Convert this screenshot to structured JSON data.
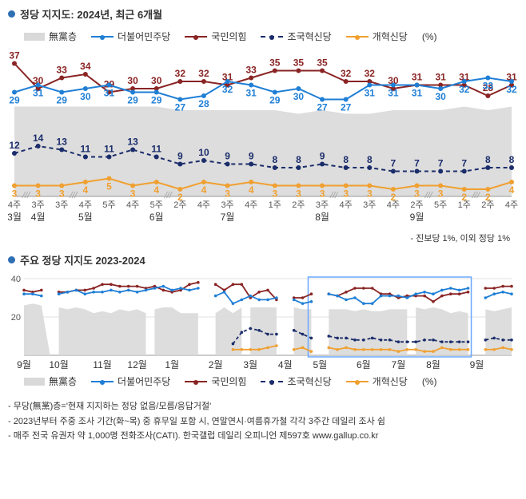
{
  "colors": {
    "bullet": "#2f6fb3",
    "area": "#d9d9d9",
    "blue": "#1f7fd6",
    "darkred": "#8a2424",
    "navy": "#1b2d6b",
    "orange": "#f0a030",
    "grid": "#e0e0e0",
    "text": "#333333",
    "hatch": "#b0b0b0",
    "highlight_box": "#6aa8ff"
  },
  "chart1": {
    "title": "정당 지지도: 2024년, 최근 6개월",
    "legend": {
      "none": "無黨층",
      "blue": "더불어민주당",
      "darkred": "국민의힘",
      "navy": "조국혁신당",
      "orange": "개혁신당",
      "pct": "(%)"
    },
    "y_min": 0,
    "y_max": 40,
    "x_labels_week": [
      "4주",
      "3주",
      "3주",
      "4주",
      "5주",
      "4주",
      "5주",
      "2주",
      "4주",
      "3주",
      "4주",
      "1주",
      "2주",
      "3주",
      "4주",
      "3주",
      "4주",
      "2주",
      "5주",
      "1주",
      "2주",
      "4주"
    ],
    "x_labels_month": [
      "3월",
      "4월",
      "",
      "5월",
      "",
      "",
      "6월",
      "",
      "",
      "7월",
      "",
      "",
      "",
      "8월",
      "",
      "",
      "",
      "9월",
      "",
      "",
      "",
      ""
    ],
    "series": {
      "none_area": [
        25,
        25,
        25,
        25,
        25,
        25,
        25,
        24,
        24,
        24,
        24,
        24,
        23,
        24,
        23,
        23,
        24,
        24,
        24,
        25,
        24,
        25
      ],
      "blue": [
        29,
        31,
        29,
        30,
        31,
        29,
        29,
        27,
        28,
        32,
        31,
        29,
        30,
        27,
        27,
        31,
        31,
        31,
        30,
        32,
        33,
        32
      ],
      "darkred": [
        37,
        30,
        33,
        34,
        29,
        30,
        30,
        32,
        32,
        31,
        33,
        35,
        35,
        35,
        32,
        32,
        30,
        31,
        31,
        31,
        28,
        31
      ],
      "navy": [
        12,
        14,
        13,
        11,
        11,
        13,
        11,
        9,
        10,
        9,
        9,
        8,
        8,
        9,
        8,
        8,
        7,
        7,
        7,
        7,
        8,
        8
      ],
      "orange": [
        3,
        3,
        3,
        4,
        5,
        3,
        4,
        2,
        4,
        3,
        4,
        3,
        3,
        3,
        3,
        3,
        2,
        3,
        3,
        2,
        2,
        4
      ]
    },
    "hatch_breaks": [
      1,
      3,
      7,
      14,
      18,
      20
    ],
    "footnote_right": "- 진보당 1%, 이외 정당 1%"
  },
  "chart2": {
    "title": "주요 정당 지지도 2023-2024",
    "y_min": 0,
    "y_max": 40,
    "y_ticks": [
      20,
      40
    ],
    "month_labels": [
      "9월",
      "10월",
      "11월",
      "12월",
      "1월",
      "2월",
      "3월",
      "4월",
      "5월",
      "6월",
      "7월",
      "8월",
      "9월",
      ""
    ],
    "segments": [
      {
        "start": 0,
        "end": 3
      },
      {
        "start": 4,
        "end": 14
      },
      {
        "start": 15,
        "end": 20
      },
      {
        "start": 22,
        "end": 25
      },
      {
        "start": 26,
        "end": 29
      },
      {
        "start": 31,
        "end": 33
      },
      {
        "start": 35,
        "end": 44
      },
      {
        "start": 45,
        "end": 51
      },
      {
        "start": 53,
        "end": 56
      }
    ],
    "series": {
      "blue": [
        32,
        32,
        31,
        null,
        32,
        33,
        34,
        32,
        33,
        33,
        34,
        33,
        34,
        33,
        34,
        35,
        36,
        34,
        35,
        34,
        35,
        null,
        31,
        33,
        27,
        29,
        31,
        29,
        29,
        30,
        null,
        29,
        27,
        28,
        null,
        32,
        31,
        29,
        30,
        27,
        27,
        31,
        31,
        31,
        30,
        32,
        33,
        32,
        34,
        35,
        34,
        35,
        null,
        30,
        32,
        33,
        32
      ],
      "darkred": [
        34,
        33,
        34,
        null,
        33,
        33,
        34,
        34,
        35,
        37,
        37,
        36,
        36,
        36,
        35,
        36,
        34,
        33,
        34,
        37,
        38,
        null,
        37,
        34,
        37,
        37,
        30,
        33,
        34,
        29,
        null,
        30,
        30,
        32,
        null,
        32,
        31,
        33,
        35,
        35,
        35,
        32,
        32,
        30,
        31,
        31,
        31,
        28,
        31,
        32,
        32,
        33,
        null,
        35,
        35,
        36,
        36
      ],
      "navy": [
        null,
        null,
        null,
        null,
        null,
        null,
        null,
        null,
        null,
        null,
        null,
        null,
        null,
        null,
        null,
        null,
        null,
        null,
        null,
        null,
        null,
        null,
        null,
        null,
        6,
        12,
        14,
        13,
        11,
        11,
        null,
        13,
        11,
        9,
        null,
        10,
        9,
        9,
        8,
        8,
        9,
        8,
        8,
        7,
        7,
        7,
        8,
        8,
        7,
        7,
        7,
        7,
        null,
        8,
        9,
        8,
        8
      ],
      "orange": [
        null,
        null,
        null,
        null,
        null,
        null,
        null,
        null,
        null,
        null,
        null,
        null,
        null,
        null,
        null,
        null,
        null,
        null,
        null,
        null,
        null,
        null,
        null,
        null,
        3,
        3,
        3,
        3,
        4,
        5,
        null,
        3,
        4,
        2,
        null,
        4,
        3,
        4,
        3,
        3,
        3,
        3,
        3,
        2,
        3,
        3,
        2,
        2,
        4,
        3,
        3,
        3,
        null,
        3,
        3,
        4,
        3
      ],
      "none": [
        26,
        27,
        26,
        null,
        25,
        24,
        25,
        24,
        22,
        23,
        22,
        24,
        23,
        24,
        22,
        24,
        25,
        25,
        22,
        22,
        22,
        null,
        22,
        25,
        22,
        25,
        25,
        25,
        25,
        25,
        null,
        25,
        24,
        24,
        null,
        24,
        24,
        24,
        23,
        24,
        23,
        23,
        24,
        24,
        24,
        25,
        24,
        25,
        24,
        22,
        23,
        22,
        null,
        24,
        23,
        24,
        25
      ]
    },
    "highlight": {
      "start": 33,
      "end": 51
    }
  },
  "footnotes": [
    "무당(無黨)층='현재 지지하는 정당 없음/모름/응답거절'",
    "2023년부터 주중 조사 기간(화~목) 중 휴무일 포함 시, 연말연시·여름휴가철 각각 3주간 데일리 조사 쉼",
    "매주 전국 유권자 약 1,000명 전화조사(CATI). 한국갤럽 데일리 오피니언 제597호 www.gallup.co.kr"
  ]
}
